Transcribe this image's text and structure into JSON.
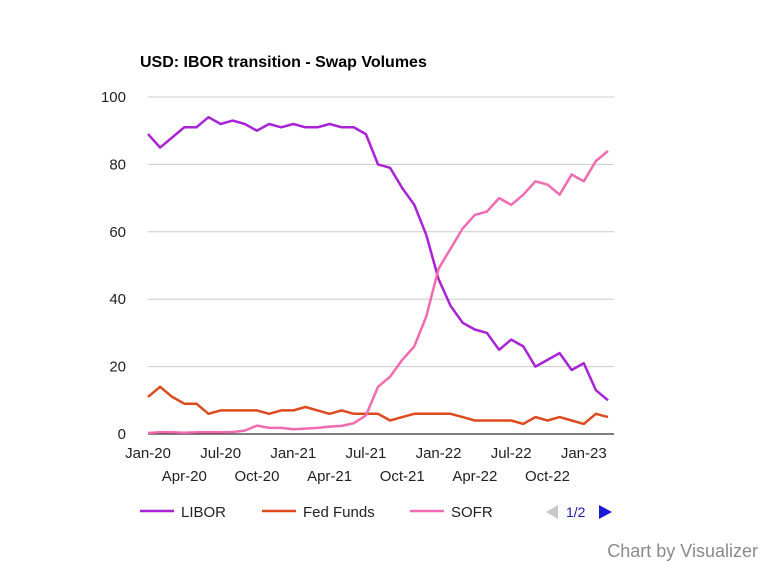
{
  "chart_data": {
    "type": "line",
    "title": "USD: IBOR transition - Swap Volumes",
    "xlabel": "",
    "ylabel": "",
    "ylim": [
      0,
      100
    ],
    "yticks": [
      0,
      20,
      40,
      60,
      80,
      100
    ],
    "x": [
      "Jan-20",
      "Feb-20",
      "Mar-20",
      "Apr-20",
      "May-20",
      "Jun-20",
      "Jul-20",
      "Aug-20",
      "Sep-20",
      "Oct-20",
      "Nov-20",
      "Dec-20",
      "Jan-21",
      "Feb-21",
      "Mar-21",
      "Apr-21",
      "May-21",
      "Jun-21",
      "Jul-21",
      "Aug-21",
      "Sep-21",
      "Oct-21",
      "Nov-21",
      "Dec-21",
      "Jan-22",
      "Feb-22",
      "Mar-22",
      "Apr-22",
      "May-22",
      "Jun-22",
      "Jul-22",
      "Aug-22",
      "Sep-22",
      "Oct-22",
      "Nov-22",
      "Dec-22",
      "Jan-23",
      "Feb-23",
      "Mar-23"
    ],
    "x_tick_labels_row1": [
      "Jan-20",
      "Jul-20",
      "Jan-21",
      "Jul-21",
      "Jan-22",
      "Jul-22",
      "Jan-23"
    ],
    "x_tick_labels_row2": [
      "Apr-20",
      "Oct-20",
      "Apr-21",
      "Oct-21",
      "Apr-22",
      "Oct-22"
    ],
    "series": [
      {
        "name": "LIBOR",
        "color": "#aa22d6",
        "values": [
          89,
          85,
          88,
          91,
          91,
          94,
          92,
          93,
          92,
          90,
          92,
          91,
          92,
          91,
          91,
          92,
          91,
          91,
          89,
          80,
          79,
          73,
          68,
          59,
          46,
          38,
          33,
          31,
          30,
          25,
          28,
          26,
          20,
          22,
          24,
          19,
          21,
          13,
          10
        ]
      },
      {
        "name": "Fed Funds",
        "color": "#dd4a1e",
        "values": [
          11,
          14,
          11,
          9,
          9,
          6,
          7,
          7,
          7,
          7,
          6,
          7,
          7,
          8,
          7,
          6,
          7,
          6,
          6,
          6,
          4,
          5,
          6,
          6,
          6,
          6,
          5,
          4,
          4,
          4,
          4,
          3,
          5,
          4,
          5,
          4,
          3,
          6,
          5
        ]
      },
      {
        "name": "SOFR",
        "color": "#f06bb0",
        "values": [
          0.3,
          0.5,
          0.5,
          0.4,
          0.5,
          0.5,
          0.5,
          0.6,
          1,
          2.5,
          1.8,
          1.8,
          1.4,
          1.6,
          1.8,
          2.2,
          2.4,
          3.2,
          5.5,
          14,
          17,
          22,
          26,
          35,
          49,
          55,
          61,
          65,
          66,
          70,
          68,
          71,
          75,
          74,
          71,
          77,
          75,
          81,
          84
        ]
      }
    ],
    "legend": {
      "placement": "bottom",
      "page_indicator": "1/2"
    },
    "grid": true,
    "credit": "Chart by Visualizer"
  }
}
